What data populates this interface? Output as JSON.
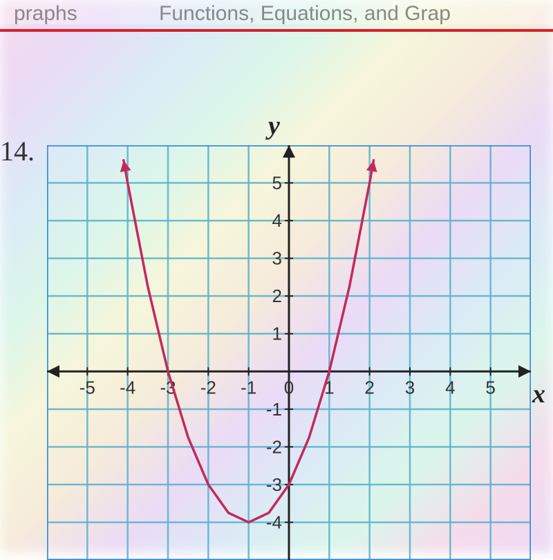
{
  "header": {
    "left_text": "praphs",
    "right_text": "Functions, Equations, and Grap"
  },
  "problem_number": "14.",
  "axis_labels": {
    "x": "x",
    "y": "y"
  },
  "chart": {
    "type": "line",
    "xlim": [
      -6,
      6
    ],
    "ylim": [
      -5,
      6
    ],
    "xticks": [
      -5,
      -4,
      -3,
      -2,
      -1,
      0,
      1,
      2,
      3,
      4,
      5
    ],
    "yticks": [
      -4,
      -3,
      -2,
      -1,
      1,
      2,
      3,
      4,
      5
    ],
    "xtick_labels": [
      "-5",
      "-4",
      "-3",
      "-2",
      "-1",
      "0",
      "1",
      "2",
      "3",
      "4",
      "5"
    ],
    "ytick_labels": [
      "-4",
      "-3",
      "-2",
      "-1",
      "1",
      "2",
      "3",
      "4",
      "5"
    ],
    "grid_color": "#5eb5c9",
    "border_color": "#3a8fd4",
    "axis_color": "#222222",
    "curve_color": "#c4285d",
    "curve_width": 3.5,
    "axis_width": 3,
    "grid_width": 2.5,
    "background_opacity": 0.35,
    "parabola": {
      "vertex_x": -1,
      "vertex_y": -4,
      "a": 1,
      "points": [
        [
          -4.1,
          5.6
        ],
        [
          -4,
          5
        ],
        [
          -3.5,
          2.25
        ],
        [
          -3,
          0
        ],
        [
          -2.5,
          -1.75
        ],
        [
          -2,
          -3
        ],
        [
          -1.5,
          -3.75
        ],
        [
          -1,
          -4
        ],
        [
          -0.5,
          -3.75
        ],
        [
          0,
          -3
        ],
        [
          0.5,
          -1.75
        ],
        [
          1,
          0
        ],
        [
          1.5,
          2.25
        ],
        [
          2,
          5
        ],
        [
          2.1,
          5.6
        ]
      ]
    }
  },
  "colors": {
    "red_line": "#d91f2a",
    "header_text": "#888888"
  }
}
